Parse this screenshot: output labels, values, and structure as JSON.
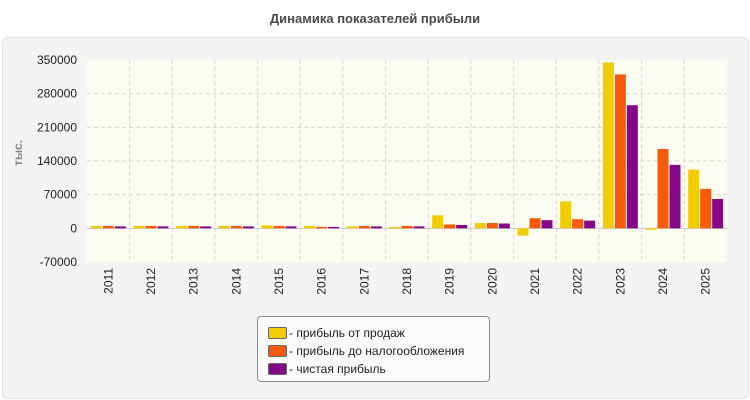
{
  "chart_data": {
    "type": "bar",
    "title": "Динамика показателей прибыли",
    "ylabel": "тыс.",
    "xlabel": "",
    "ylim": [
      -70000,
      350000
    ],
    "yticks": [
      350000,
      280000,
      210000,
      140000,
      70000,
      0,
      -70000
    ],
    "ytick_labels": [
      "350000",
      "280000",
      "210000",
      "140000",
      "70000",
      "0",
      "-70000"
    ],
    "categories": [
      "2011",
      "2012",
      "2013",
      "2014",
      "2015",
      "2016",
      "2017",
      "2018",
      "2019",
      "2020",
      "2021",
      "2022",
      "2023",
      "2024",
      "2025"
    ],
    "series": [
      {
        "name": "прибыль от продаж",
        "color": "#f2cc00",
        "values": [
          5000,
          5000,
          5000,
          5000,
          6000,
          5000,
          4000,
          3000,
          27000,
          11000,
          -15000,
          56000,
          345000,
          -3000,
          122000
        ]
      },
      {
        "name": "прибыль до налогообложения",
        "color": "#f75a0a",
        "values": [
          5000,
          5000,
          5000,
          5000,
          5000,
          3000,
          5000,
          5000,
          8000,
          11000,
          21000,
          19000,
          320000,
          165000,
          82000
        ]
      },
      {
        "name": "чистая прибыль",
        "color": "#870886",
        "values": [
          4000,
          4000,
          4000,
          4000,
          4000,
          3000,
          4000,
          4000,
          7000,
          10000,
          17000,
          16000,
          256000,
          132000,
          61000
        ]
      }
    ],
    "grid": true,
    "legend_position": "bottom-center",
    "legend_prefix": "- "
  }
}
